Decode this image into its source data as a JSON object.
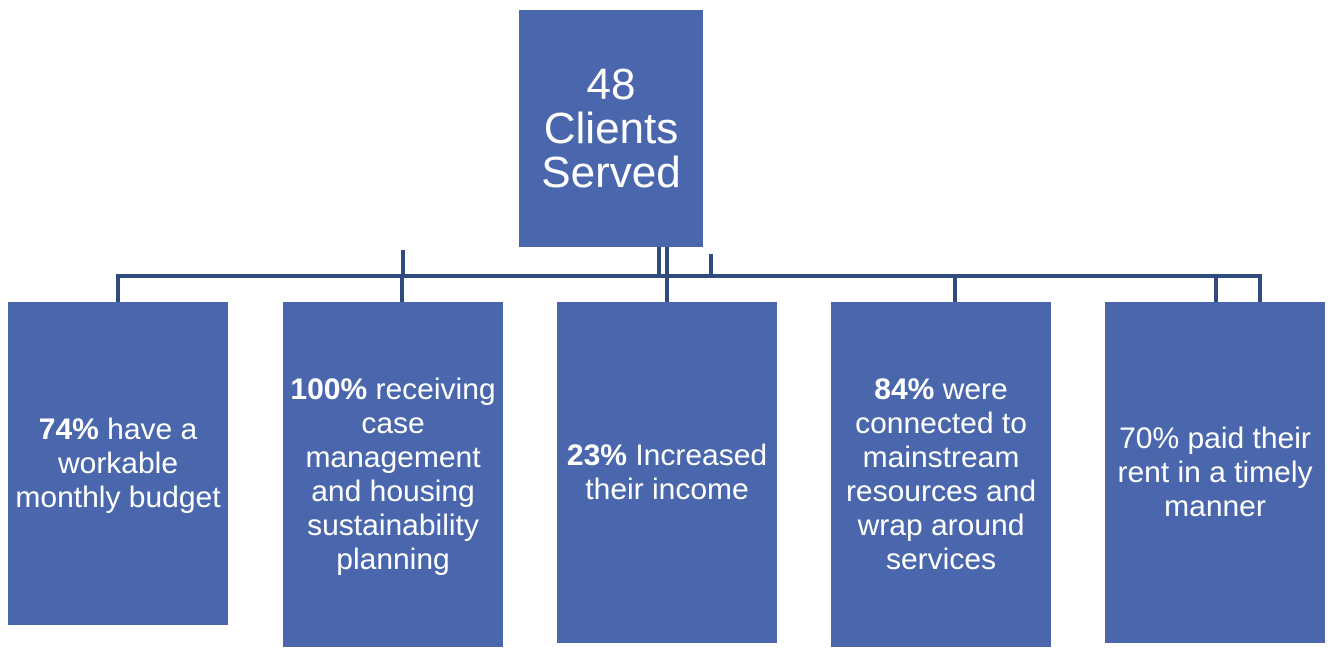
{
  "root": {
    "label": "48 Clients Served"
  },
  "children": [
    {
      "bold": "74%",
      "text": "have a workable monthly budget"
    },
    {
      "bold": "100%",
      "text": "receiving case management and housing sustainability planning"
    },
    {
      "bold": "23%",
      "text": "Increased their income"
    },
    {
      "bold": "84%",
      "text": "were connected to mainstream resources and wrap around services"
    },
    {
      "text": "70% paid their rent in a timely manner"
    }
  ]
}
